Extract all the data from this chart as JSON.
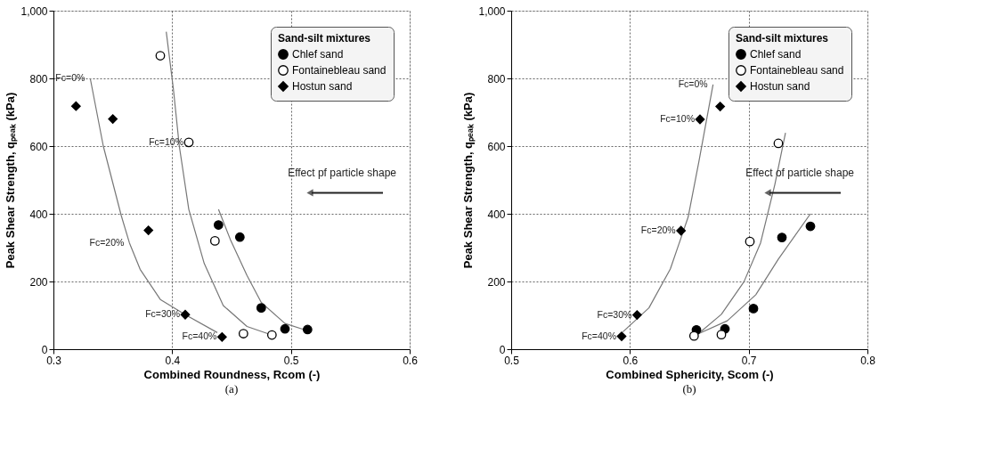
{
  "chart_data": [
    {
      "type": "scatter",
      "title": "(a)",
      "xlabel": "Combined Roundness, Rcom (-)",
      "ylabel": "Peak Shear Strength, qₚₑₐₖ (kPa)",
      "legend_title": "Sand-silt mixtures",
      "legend": "top right",
      "grid": true,
      "xlim": [
        0.3,
        0.6
      ],
      "xticks": [
        0.3,
        0.4,
        0.5,
        0.6
      ],
      "ylim": [
        0,
        1000
      ],
      "yticks": [
        0,
        200,
        400,
        600,
        800,
        {
          "value": 1000,
          "label": "1,000"
        }
      ],
      "series": [
        {
          "name": "Chlef sand",
          "marker": "circle",
          "color": "#000000",
          "x": [
            0.439,
            0.457,
            0.475,
            0.495,
            0.514
          ],
          "values": [
            367,
            331,
            122,
            60,
            58
          ]
        },
        {
          "name": "Fontainebleau sand",
          "marker": "circle",
          "color": "#ffffff",
          "x": [
            0.39,
            0.414,
            0.436,
            0.46,
            0.484
          ],
          "values": [
            867,
            611,
            320,
            46,
            42
          ]
        },
        {
          "name": "Hostun sand",
          "marker": "diamond",
          "color": "#000000",
          "x": [
            0.319,
            0.35,
            0.38,
            0.411,
            0.442
          ],
          "values": [
            718,
            680,
            351,
            102,
            36
          ]
        },
        {
          "type": "line",
          "color": "#777777",
          "x": [
            0.331,
            0.342,
            0.357,
            0.364,
            0.373,
            0.39,
            0.411,
            0.438
          ],
          "values": [
            800,
            600,
            396,
            314,
            236,
            147,
            102,
            49
          ]
        },
        {
          "type": "line",
          "color": "#777777",
          "x": [
            0.395,
            0.401,
            0.406,
            0.414,
            0.427,
            0.443,
            0.463,
            0.482
          ],
          "values": [
            938,
            769,
            600,
            413,
            253,
            129,
            67,
            44
          ]
        },
        {
          "type": "line",
          "color": "#777777",
          "x": [
            0.439,
            0.449,
            0.463,
            0.475,
            0.495,
            0.511
          ],
          "values": [
            413,
            324,
            218,
            138,
            76,
            58
          ]
        }
      ],
      "annotations": [
        {
          "text": "Fc=0%",
          "x": 0.331,
          "y": 800
        },
        {
          "text": "Fc=10%",
          "x": 0.414,
          "y": 611
        },
        {
          "text": "Fc=20%",
          "x": 0.364,
          "y": 314
        },
        {
          "text": "Fc=30%",
          "x": 0.411,
          "y": 102
        },
        {
          "text": "Fc=40%",
          "x": 0.442,
          "y": 36
        },
        "Effect pf particle shape"
      ]
    },
    {
      "type": "scatter",
      "title": "(b)",
      "xlabel": "Combined Sphericity, Scom (-)",
      "ylabel": "Peak Shear Strength, qₚₑₐₖ (kPa)",
      "legend_title": "Sand-silt mixtures",
      "legend": "top right",
      "grid": true,
      "xlim": [
        0.5,
        0.8
      ],
      "xticks": [
        0.5,
        0.6,
        0.7,
        0.8
      ],
      "ylim": [
        0,
        1000
      ],
      "yticks": [
        0,
        200,
        400,
        600,
        800,
        {
          "value": 1000,
          "label": "1,000"
        }
      ],
      "series": [
        {
          "name": "Chlef sand",
          "marker": "circle",
          "color": "#000000",
          "x": [
            0.752,
            0.728,
            0.704,
            0.68,
            0.656
          ],
          "values": [
            363,
            330,
            120,
            60,
            57
          ]
        },
        {
          "name": "Fontainebleau sand",
          "marker": "circle",
          "color": "#ffffff",
          "x": [
            0.725,
            0.701,
            0.677,
            0.654
          ],
          "values": [
            608,
            318,
            43,
            39
          ]
        },
        {
          "name": "Hostun sand",
          "marker": "diamond",
          "color": "#000000",
          "x": [
            0.676,
            0.659,
            0.643,
            0.606,
            0.593
          ],
          "values": [
            717,
            679,
            350,
            101,
            38
          ]
        },
        {
          "type": "line",
          "color": "#777777",
          "x": [
            0.594,
            0.616,
            0.634,
            0.649,
            0.658,
            0.67
          ],
          "values": [
            51,
            122,
            237,
            390,
            553,
            782
          ]
        },
        {
          "type": "line",
          "color": "#777777",
          "x": [
            0.656,
            0.677,
            0.696,
            0.71,
            0.722,
            0.731
          ],
          "values": [
            41,
            103,
            199,
            314,
            486,
            639
          ]
        },
        {
          "type": "line",
          "color": "#777777",
          "x": [
            0.658,
            0.682,
            0.706,
            0.725,
            0.752
          ],
          "values": [
            46,
            84,
            161,
            266,
            400
          ]
        }
      ],
      "annotations": [
        "Effect of particle shape",
        {
          "text": "Fc=0%",
          "x": 0.67,
          "y": 782
        },
        {
          "text": "Fc=10%",
          "x": 0.659,
          "y": 679
        },
        {
          "text": "Fc=20%",
          "x": 0.643,
          "y": 350
        },
        {
          "text": "Fc=30%",
          "x": 0.606,
          "y": 101
        },
        {
          "text": "Fc=40%",
          "x": 0.593,
          "y": 38
        }
      ]
    }
  ]
}
